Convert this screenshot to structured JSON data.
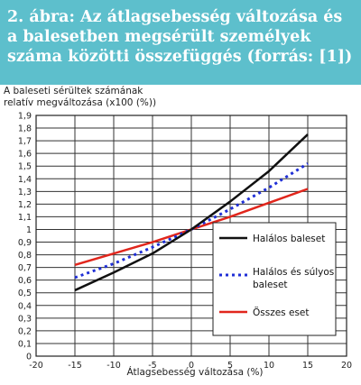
{
  "caption": "2. ábra: Az átlagsebesség változása és a balesetben megsérült személyek száma közötti összefüggés (forrás: [1])",
  "colors": {
    "band": "#5dbfcc",
    "fatal": "#111111",
    "fatal_serious": "#1f2fd6",
    "all": "#e1261c"
  },
  "chart_data": {
    "type": "line",
    "title": "",
    "xlabel": "Átlagsebesség változása (%)",
    "ylabel_line1": "A baleseti sérültek számának",
    "ylabel_line2": "relatív megváltozása (x100 (%))",
    "xlim": [
      -20,
      20
    ],
    "ylim": [
      0,
      1.9
    ],
    "x_ticks": [
      "-20",
      "-15",
      "-10",
      "-5",
      "0",
      "5",
      "10",
      "15",
      "20"
    ],
    "y_ticks": [
      "0",
      "0,1",
      "0,2",
      "0,3",
      "0,4",
      "0,5",
      "0,6",
      "0,7",
      "0,8",
      "0,9",
      "1",
      "1,1",
      "1,2",
      "1,3",
      "1,4",
      "1,5",
      "1,6",
      "1,7",
      "1,8",
      "1,9"
    ],
    "grid": true,
    "legend_position": "right",
    "series": [
      {
        "name": "Halálos baleset",
        "style": "solid",
        "x": [
          -15,
          -10,
          -5,
          0,
          5,
          10,
          15
        ],
        "values": [
          0.52,
          0.66,
          0.81,
          1.0,
          1.22,
          1.46,
          1.75
        ]
      },
      {
        "name": "Halálos és súlyos baleset",
        "name_line1": "Halálos és súlyos",
        "name_line2": "baleset",
        "style": "dotted",
        "x": [
          -15,
          -10,
          -5,
          0,
          5,
          10,
          15
        ],
        "values": [
          0.62,
          0.73,
          0.86,
          1.0,
          1.16,
          1.33,
          1.52
        ]
      },
      {
        "name": "Összes eset",
        "style": "solid",
        "x": [
          -15,
          -10,
          -5,
          0,
          5,
          10,
          15
        ],
        "values": [
          0.72,
          0.81,
          0.9,
          1.0,
          1.1,
          1.21,
          1.32
        ]
      }
    ]
  }
}
